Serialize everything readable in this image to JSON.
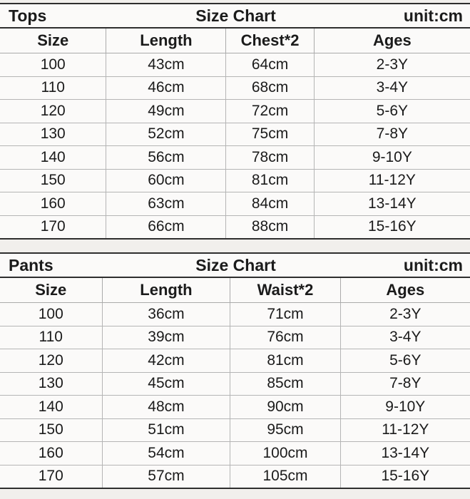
{
  "colors": {
    "page_background": "#f1efec",
    "table_background": "#fbfaf9",
    "dark_border": "#2e2e2e",
    "light_border": "#b5b5b5",
    "text": "#1b1b1b"
  },
  "tops": {
    "label": "Tops",
    "title": "Size Chart",
    "unit": "unit:cm",
    "headers": [
      "Size",
      "Length",
      "Chest*2",
      "Ages"
    ],
    "rows": [
      {
        "size": "100",
        "length": "43cm",
        "measure": "64cm",
        "ages": "2-3Y"
      },
      {
        "size": "110",
        "length": "46cm",
        "measure": "68cm",
        "ages": "3-4Y"
      },
      {
        "size": "120",
        "length": "49cm",
        "measure": "72cm",
        "ages": "5-6Y"
      },
      {
        "size": "130",
        "length": "52cm",
        "measure": "75cm",
        "ages": "7-8Y"
      },
      {
        "size": "140",
        "length": "56cm",
        "measure": "78cm",
        "ages": "9-10Y"
      },
      {
        "size": "150",
        "length": "60cm",
        "measure": "81cm",
        "ages": "11-12Y"
      },
      {
        "size": "160",
        "length": "63cm",
        "measure": "84cm",
        "ages": "13-14Y"
      },
      {
        "size": "170",
        "length": "66cm",
        "measure": "88cm",
        "ages": "15-16Y"
      }
    ]
  },
  "pants": {
    "label": "Pants",
    "title": "Size Chart",
    "unit": "unit:cm",
    "headers": [
      "Size",
      "Length",
      "Waist*2",
      "Ages"
    ],
    "rows": [
      {
        "size": "100",
        "length": "36cm",
        "measure": "71cm",
        "ages": "2-3Y"
      },
      {
        "size": "110",
        "length": "39cm",
        "measure": "76cm",
        "ages": "3-4Y"
      },
      {
        "size": "120",
        "length": "42cm",
        "measure": "81cm",
        "ages": "5-6Y"
      },
      {
        "size": "130",
        "length": "45cm",
        "measure": "85cm",
        "ages": "7-8Y"
      },
      {
        "size": "140",
        "length": "48cm",
        "measure": "90cm",
        "ages": "9-10Y"
      },
      {
        "size": "150",
        "length": "51cm",
        "measure": "95cm",
        "ages": "11-12Y"
      },
      {
        "size": "160",
        "length": "54cm",
        "measure": "100cm",
        "ages": "13-14Y"
      },
      {
        "size": "170",
        "length": "57cm",
        "measure": "105cm",
        "ages": "15-16Y"
      }
    ]
  }
}
